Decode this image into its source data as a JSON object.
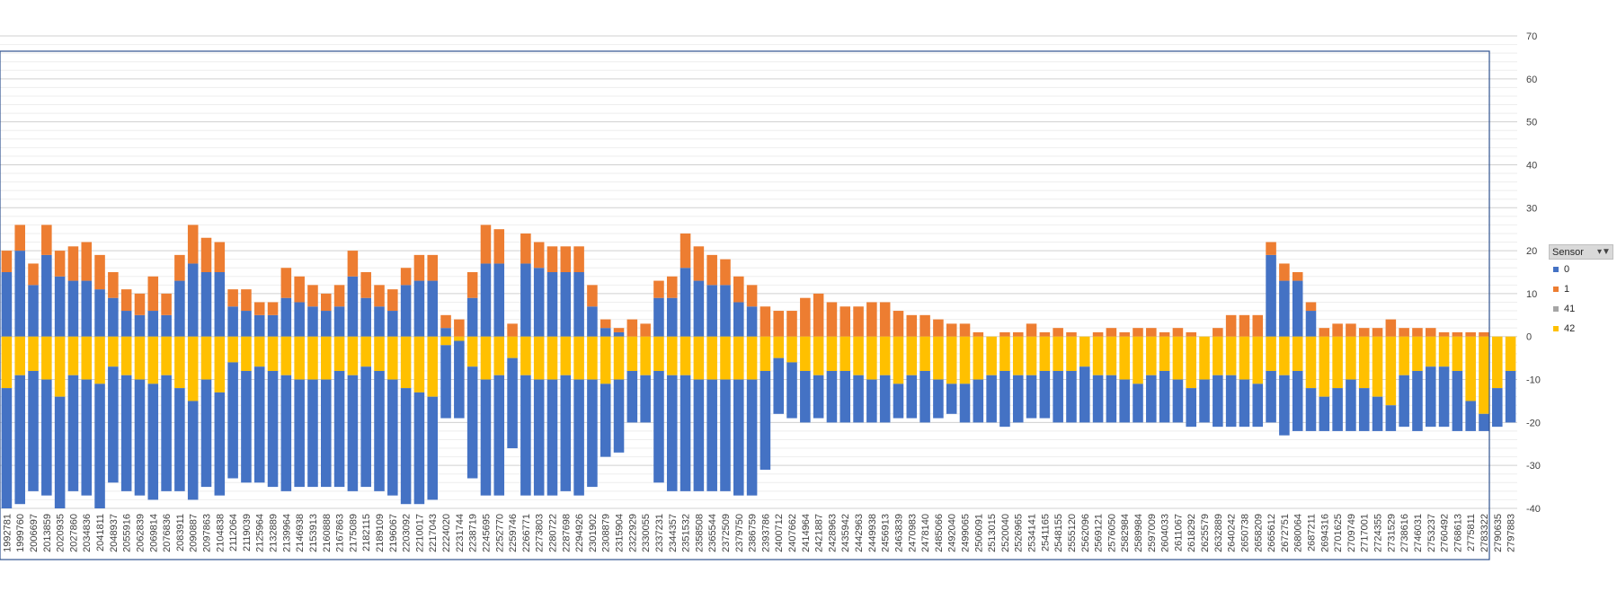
{
  "chart_data": {
    "type": "bar",
    "stacked": true,
    "title": "",
    "xlabel": "",
    "ylabel": "",
    "ylim": [
      -40,
      70
    ],
    "yticks": [
      70,
      60,
      50,
      40,
      30,
      20,
      10,
      0,
      -10,
      -20,
      -30,
      -40
    ],
    "grid": true,
    "legend_position": "right",
    "legend_title": "Sensor",
    "categories": [
      "1992781",
      "1999760",
      "2006697",
      "2013859",
      "2020935",
      "2027860",
      "2034836",
      "2041811",
      "2048937",
      "2055916",
      "2062839",
      "2069814",
      "2076836",
      "2083911",
      "2090887",
      "2097863",
      "2104838",
      "2112064",
      "2119039",
      "2125964",
      "2132889",
      "2139964",
      "2146938",
      "2153913",
      "2160888",
      "2167863",
      "2175089",
      "2182115",
      "2189109",
      "2196067",
      "2203092",
      "2210017",
      "2217043",
      "2224020",
      "2231744",
      "2238719",
      "2245695",
      "2252770",
      "2259746",
      "2266771",
      "2273803",
      "2280722",
      "2287698",
      "2294926",
      "2301902",
      "2308879",
      "2315904",
      "2322929",
      "2330055",
      "2337231",
      "2344357",
      "2351532",
      "2358508",
      "2365544",
      "2372509",
      "2379750",
      "2386759",
      "2393786",
      "2400712",
      "2407662",
      "2414964",
      "2421887",
      "2428963",
      "2435942",
      "2442963",
      "2449938",
      "2456913",
      "2463839",
      "2470983",
      "2478140",
      "2485066",
      "2492040",
      "2499065",
      "2506091",
      "2513015",
      "2520040",
      "2526965",
      "2534141",
      "2541165",
      "2548155",
      "2555120",
      "2562096",
      "2569121",
      "2576050",
      "2582984",
      "2589984",
      "2597009",
      "2604033",
      "2611067",
      "2618292",
      "2625579",
      "2632889",
      "2640242",
      "2650738",
      "2658209",
      "2665612",
      "2672751",
      "2680064",
      "2687211",
      "2694316",
      "2701625",
      "2709749",
      "2717001",
      "2724355",
      "2731529",
      "2738616",
      "2746031",
      "2753237",
      "2760492",
      "2768613",
      "2775811",
      "2783322",
      "2790635",
      "2797883"
    ],
    "series": [
      {
        "name": "0",
        "color": "#4472c4",
        "values": [
          15,
          20,
          12,
          19,
          14,
          13,
          13,
          11,
          9,
          6,
          5,
          6,
          5,
          13,
          17,
          15,
          15,
          7,
          6,
          5,
          5,
          9,
          8,
          7,
          6,
          7,
          14,
          9,
          7,
          6,
          12,
          13,
          13,
          2,
          0,
          9,
          17,
          17,
          0,
          17,
          16,
          15,
          15,
          15,
          7,
          2,
          1,
          0,
          0,
          9,
          9,
          16,
          13,
          12,
          12,
          8,
          7,
          0,
          0,
          0,
          0,
          0,
          0,
          0,
          0,
          0,
          0,
          0,
          0,
          0,
          0,
          0,
          0,
          0,
          0,
          0,
          0,
          0,
          0,
          0,
          0,
          0,
          0,
          0,
          0,
          0,
          0,
          0,
          0,
          0,
          0,
          0,
          0,
          0,
          0,
          19,
          13,
          13,
          6,
          0,
          0,
          0,
          0,
          0,
          0,
          0,
          0,
          0,
          0,
          0,
          0,
          0,
          0,
          0
        ]
      },
      {
        "name": "1",
        "color": "#ed7d31",
        "values": [
          5,
          6,
          5,
          7,
          6,
          8,
          9,
          8,
          6,
          5,
          5,
          8,
          5,
          6,
          9,
          8,
          7,
          4,
          5,
          3,
          3,
          7,
          6,
          5,
          4,
          5,
          6,
          6,
          5,
          5,
          4,
          6,
          6,
          3,
          4,
          6,
          9,
          8,
          3,
          7,
          6,
          6,
          6,
          6,
          5,
          2,
          1,
          4,
          3,
          4,
          5,
          8,
          8,
          7,
          6,
          6,
          5,
          7,
          6,
          6,
          9,
          10,
          8,
          7,
          7,
          8,
          8,
          6,
          5,
          5,
          4,
          3,
          3,
          1,
          0,
          1,
          1,
          3,
          1,
          2,
          1,
          0,
          1,
          2,
          1,
          2,
          2,
          1,
          2,
          1,
          0,
          2,
          5,
          5,
          5,
          3,
          4,
          2,
          2,
          2,
          3,
          3,
          2,
          2,
          4,
          2,
          2,
          2,
          1,
          1,
          1,
          1,
          0,
          0
        ]
      },
      {
        "name": "41",
        "color": "#a5a5a5",
        "values": [
          0,
          0,
          0,
          0,
          0,
          0,
          0,
          0,
          0,
          0,
          0,
          0,
          0,
          0,
          0,
          0,
          0,
          0,
          0,
          0,
          0,
          0,
          0,
          0,
          0,
          0,
          0,
          0,
          0,
          0,
          0,
          0,
          0,
          0,
          0,
          0,
          0,
          0,
          0,
          0,
          0,
          0,
          0,
          0,
          0,
          0,
          0,
          0,
          0,
          0,
          0,
          0,
          0,
          0,
          0,
          0,
          0,
          0,
          0,
          0,
          0,
          0,
          0,
          0,
          0,
          0,
          0,
          0,
          0,
          0,
          0,
          0,
          0,
          0,
          0,
          0,
          0,
          0,
          0,
          0,
          0,
          0,
          0,
          0,
          0,
          0,
          0,
          0,
          0,
          0,
          0,
          0,
          0,
          0,
          0,
          0,
          0,
          0,
          0,
          0,
          0,
          0,
          0,
          0,
          0,
          0,
          0,
          0,
          0,
          0,
          0,
          0,
          0,
          0
        ]
      },
      {
        "name": "42",
        "color": "#ffc000",
        "values": [
          -12,
          -9,
          -8,
          -10,
          -14,
          -9,
          -10,
          -11,
          -7,
          -9,
          -10,
          -11,
          -9,
          -12,
          -15,
          -10,
          -13,
          -6,
          -8,
          -7,
          -8,
          -9,
          -10,
          -10,
          -10,
          -8,
          -9,
          -7,
          -8,
          -10,
          -12,
          -13,
          -14,
          -2,
          -1,
          -7,
          -10,
          -9,
          -5,
          -9,
          -10,
          -10,
          -9,
          -10,
          -10,
          -11,
          -10,
          -8,
          -9,
          -8,
          -9,
          -9,
          -10,
          -10,
          -10,
          -10,
          -10,
          -8,
          -5,
          -6,
          -8,
          -9,
          -8,
          -8,
          -9,
          -10,
          -9,
          -11,
          -9,
          -8,
          -10,
          -11,
          -11,
          -10,
          -9,
          -8,
          -9,
          -9,
          -8,
          -8,
          -8,
          -7,
          -9,
          -9,
          -10,
          -11,
          -9,
          -8,
          -10,
          -12,
          -10,
          -9,
          -9,
          -10,
          -11,
          -8,
          -9,
          -8,
          -12,
          -14,
          -12,
          -10,
          -12,
          -14,
          -16,
          -9,
          -8,
          -7,
          -7,
          -8,
          -15,
          -18,
          -12,
          -8
        ]
      },
      {
        "name": "0_neg",
        "legend": false,
        "color": "#4472c4",
        "values": [
          -28,
          -30,
          -28,
          -27,
          -26,
          -27,
          -27,
          -29,
          -27,
          -27,
          -27,
          -27,
          -27,
          -24,
          -23,
          -25,
          -24,
          -27,
          -26,
          -27,
          -27,
          -27,
          -25,
          -25,
          -25,
          -27,
          -27,
          -28,
          -28,
          -27,
          -27,
          -26,
          -24,
          -17,
          -18,
          -26,
          -27,
          -28,
          -21,
          -28,
          -27,
          -27,
          -27,
          -27,
          -25,
          -17,
          -17,
          -12,
          -11,
          -26,
          -27,
          -27,
          -26,
          -26,
          -26,
          -27,
          -27,
          -23,
          -13,
          -13,
          -12,
          -10,
          -12,
          -12,
          -11,
          -10,
          -11,
          -8,
          -10,
          -12,
          -9,
          -7,
          -9,
          -10,
          -11,
          -13,
          -11,
          -10,
          -11,
          -12,
          -12,
          -13,
          -11,
          -11,
          -10,
          -9,
          -11,
          -12,
          -10,
          -9,
          -10,
          -12,
          -12,
          -11,
          -10,
          -12,
          -14,
          -14,
          -10,
          -8,
          -10,
          -12,
          -10,
          -8,
          -6,
          -12,
          -14,
          -14,
          -14,
          -14,
          -7,
          -4,
          -9,
          -12
        ]
      }
    ]
  }
}
